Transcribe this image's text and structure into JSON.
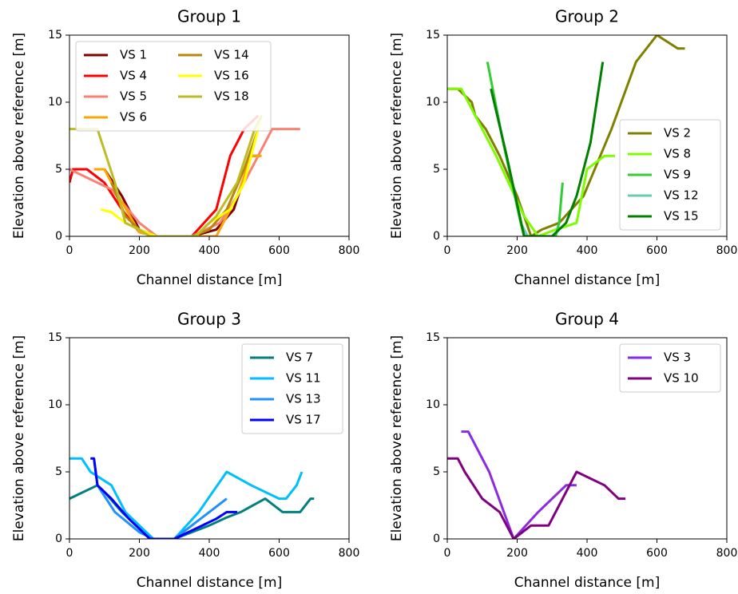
{
  "chart_data": [
    {
      "type": "line",
      "title": "Group 1",
      "x_label": "Channel distance [m]",
      "y_label": "Elevation above reference [m]",
      "xlim": [
        0,
        800
      ],
      "ylim": [
        0,
        15
      ],
      "xticks": [
        0,
        200,
        400,
        600,
        800
      ],
      "yticks": [
        0,
        5,
        10,
        15
      ],
      "legend": "upper left",
      "legend_columns": 2,
      "series": [
        {
          "name": "VS 1",
          "color": "#800000",
          "x": [
            100,
            150,
            200,
            250,
            350,
            420,
            470,
            520,
            545
          ],
          "y": [
            5,
            3,
            0.5,
            0,
            0,
            0.5,
            2,
            6,
            6
          ]
        },
        {
          "name": "VS 4",
          "color": "#ff0000",
          "x": [
            0,
            10,
            50,
            100,
            150,
            200,
            250,
            350,
            420,
            460,
            500,
            540
          ],
          "y": [
            4,
            5,
            5,
            4,
            2,
            0.3,
            0,
            0,
            2,
            6,
            8,
            9
          ]
        },
        {
          "name": "VS 5",
          "color": "#fa8072",
          "x": [
            0,
            120,
            200,
            250,
            350,
            430,
            480,
            540,
            580,
            660
          ],
          "y": [
            5,
            3.5,
            1,
            0,
            0,
            1,
            3,
            6,
            8,
            8
          ]
        },
        {
          "name": "VS 6",
          "color": "#ffa500",
          "x": [
            70,
            100,
            140,
            200,
            250,
            420,
            440,
            480,
            520,
            550
          ],
          "y": [
            5,
            5,
            3,
            0.3,
            0,
            0,
            1,
            3,
            6,
            6
          ]
        },
        {
          "name": "VS 14",
          "color": "#b8860b",
          "x": [
            120,
            160,
            200,
            250,
            350,
            400,
            450,
            500,
            540
          ],
          "y": [
            4,
            1.5,
            0.5,
            0,
            0,
            0.5,
            2,
            5,
            8
          ]
        },
        {
          "name": "VS 16",
          "color": "#ffff00",
          "x": [
            90,
            120,
            160,
            200,
            250,
            360,
            400,
            460,
            500,
            550
          ],
          "y": [
            2,
            1.8,
            1,
            0.5,
            0,
            0,
            1,
            2,
            4,
            9
          ]
        },
        {
          "name": "VS 18",
          "color": "#bcbd22",
          "x": [
            0,
            80,
            130,
            160,
            200,
            230,
            360,
            420,
            480,
            530,
            550
          ],
          "y": [
            8,
            8,
            4,
            1,
            0.5,
            0,
            0,
            1.5,
            4,
            8,
            9
          ]
        }
      ]
    },
    {
      "type": "line",
      "title": "Group 2",
      "x_label": "Channel distance [m]",
      "y_label": "Elevation above reference [m]",
      "xlim": [
        0,
        800
      ],
      "ylim": [
        0,
        15
      ],
      "xticks": [
        0,
        200,
        400,
        600,
        800
      ],
      "yticks": [
        0,
        5,
        10,
        15
      ],
      "legend": "lower right",
      "legend_columns": 1,
      "series": [
        {
          "name": "VS 2",
          "color": "#808000",
          "x": [
            0,
            30,
            70,
            80,
            110,
            150,
            200,
            240,
            270,
            320,
            390,
            470,
            540,
            600,
            660,
            680
          ],
          "y": [
            11,
            11,
            10,
            9,
            8,
            6,
            3,
            0,
            0.5,
            1,
            3,
            8,
            13,
            15,
            14,
            14
          ]
        },
        {
          "name": "VS 8",
          "color": "#7cfc00",
          "x": [
            0,
            40,
            80,
            140,
            220,
            260,
            310,
            370,
            400,
            450,
            480
          ],
          "y": [
            11,
            11,
            9,
            6,
            1.5,
            0,
            0.5,
            1,
            5,
            6,
            6
          ]
        },
        {
          "name": "VS 9",
          "color": "#32cd32",
          "x": [
            115,
            160,
            210,
            220,
            310,
            320,
            330
          ],
          "y": [
            13,
            7,
            1,
            0,
            0,
            1,
            4
          ]
        },
        {
          "name": "VS 12",
          "color": "#66cdaa",
          "x": [
            210,
            230,
            300,
            320
          ],
          "y": [
            1,
            0,
            0,
            0.5
          ]
        },
        {
          "name": "VS 15",
          "color": "#008000",
          "x": [
            125,
            170,
            220,
            300,
            340,
            370,
            410,
            445
          ],
          "y": [
            11,
            6,
            0,
            0,
            1,
            3,
            7,
            13
          ]
        }
      ]
    },
    {
      "type": "line",
      "title": "Group 3",
      "x_label": "Channel distance [m]",
      "y_label": "Elevation above reference [m]",
      "xlim": [
        0,
        800
      ],
      "ylim": [
        0,
        15
      ],
      "xticks": [
        0,
        200,
        400,
        600,
        800
      ],
      "yticks": [
        0,
        5,
        10,
        15
      ],
      "legend": "upper right",
      "legend_columns": 1,
      "series": [
        {
          "name": "VS 7",
          "color": "#008080",
          "x": [
            0,
            80,
            100,
            150,
            220,
            240,
            300,
            350,
            400,
            450,
            490,
            560,
            610,
            660,
            690,
            700
          ],
          "y": [
            3,
            4,
            3.5,
            2,
            0.3,
            0,
            0,
            0.5,
            1,
            1.6,
            2,
            3,
            2,
            2,
            3,
            3
          ]
        },
        {
          "name": "VS 11",
          "color": "#00bfff",
          "x": [
            0,
            35,
            60,
            120,
            160,
            220,
            240,
            300,
            370,
            450,
            520,
            600,
            620,
            650,
            665
          ],
          "y": [
            6,
            6,
            5,
            4,
            2,
            0.5,
            0,
            0,
            2,
            5,
            4,
            3,
            3,
            4,
            5
          ]
        },
        {
          "name": "VS 13",
          "color": "#1e90ff",
          "x": [
            70,
            80,
            130,
            200,
            240,
            300,
            350,
            400,
            450
          ],
          "y": [
            6,
            4,
            2,
            0.5,
            0,
            0,
            1,
            2,
            3
          ]
        },
        {
          "name": "VS 17",
          "color": "#0000ff",
          "x": [
            60,
            70,
            80,
            120,
            170,
            230,
            300,
            340,
            380,
            420,
            450,
            480
          ],
          "y": [
            6,
            6,
            4,
            3,
            1.5,
            0,
            0,
            0.5,
            1,
            1.5,
            2,
            2
          ]
        }
      ]
    },
    {
      "type": "line",
      "title": "Group 4",
      "x_label": "Channel distance [m]",
      "y_label": "Elevation above reference [m]",
      "xlim": [
        0,
        800
      ],
      "ylim": [
        0,
        15
      ],
      "xticks": [
        0,
        200,
        400,
        600,
        800
      ],
      "yticks": [
        0,
        5,
        10,
        15
      ],
      "legend": "upper right",
      "legend_columns": 1,
      "series": [
        {
          "name": "VS 3",
          "color": "#8a2be2",
          "x": [
            40,
            60,
            120,
            190,
            260,
            340,
            370
          ],
          "y": [
            8,
            8,
            5,
            0,
            2,
            4,
            4
          ]
        },
        {
          "name": "VS 10",
          "color": "#800080",
          "x": [
            0,
            30,
            50,
            100,
            150,
            190,
            240,
            290,
            370,
            450,
            490,
            510
          ],
          "y": [
            6,
            6,
            5,
            3,
            2,
            0,
            1,
            1,
            5,
            4,
            3,
            3
          ]
        }
      ]
    }
  ]
}
